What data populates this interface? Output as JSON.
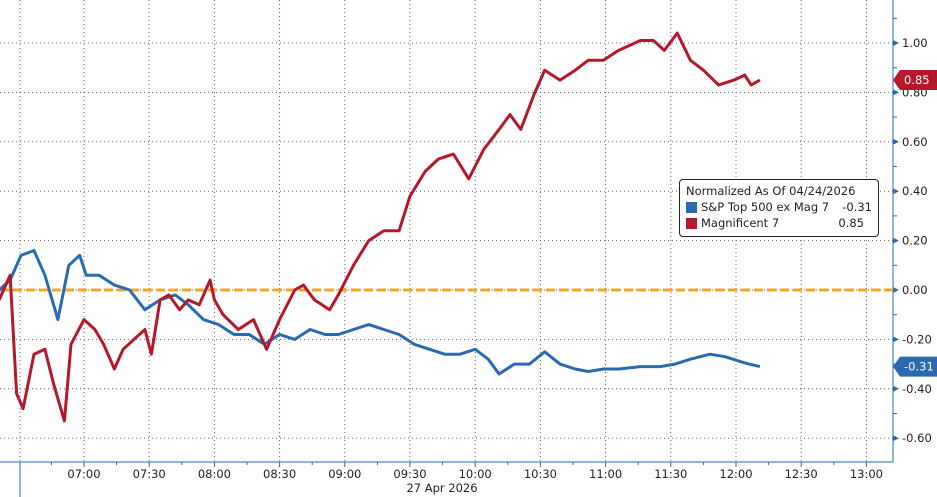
{
  "chart_data": {
    "type": "line",
    "title": "",
    "xlabel": "27 Apr 2026",
    "ylabel": "",
    "x_ticks": [
      "07:00",
      "07:30",
      "08:00",
      "08:30",
      "09:00",
      "09:30",
      "10:00",
      "10:30",
      "11:00",
      "11:30",
      "12:00",
      "12:30",
      "13:00"
    ],
    "y_ticks": [
      "1.00",
      "0.80",
      "0.60",
      "0.40",
      "0.20",
      "0.00",
      "-0.20",
      "-0.40",
      "-0.60"
    ],
    "ylim": [
      -0.68,
      1.17
    ],
    "xlim": [
      "06:21",
      "13:12"
    ],
    "y_axis_side": "right",
    "grid": true,
    "legend": {
      "title": "Normalized As Of 04/24/2026",
      "placement": "right",
      "entries": [
        {
          "name": "S&P Top 500 ex Mag 7",
          "value": "-0.31",
          "color": "#2a6bb0"
        },
        {
          "name": "Magnificent 7",
          "value": "0.85",
          "color": "#b5182b"
        }
      ]
    },
    "reference_line": {
      "y": 0,
      "color": "#f5a623",
      "style": "dashed"
    },
    "series": [
      {
        "name": "S&P Top 500 ex Mag 7",
        "color": "#2a6bb0",
        "last_label": "-0.31",
        "x": [
          "06:21",
          "06:26",
          "06:31",
          "06:37",
          "06:42",
          "06:48",
          "06:53",
          "06:58",
          "07:01",
          "07:07",
          "07:14",
          "07:21",
          "07:28",
          "07:35",
          "07:42",
          "07:48",
          "07:55",
          "08:02",
          "08:09",
          "08:16",
          "08:23",
          "08:30",
          "08:37",
          "08:44",
          "08:51",
          "08:57",
          "09:04",
          "09:11",
          "09:18",
          "09:25",
          "09:32",
          "09:39",
          "09:46",
          "09:53",
          "10:00",
          "10:06",
          "10:11",
          "10:18",
          "10:25",
          "10:32",
          "10:39",
          "10:46",
          "10:52",
          "10:59",
          "11:06",
          "11:16",
          "11:25",
          "11:32",
          "11:39",
          "11:48",
          "11:55",
          "12:02",
          "12:06",
          "12:11"
        ],
        "y": [
          0,
          0.04,
          0.14,
          0.16,
          0.06,
          -0.12,
          0.1,
          0.14,
          0.06,
          0.06,
          0.02,
          0,
          -0.08,
          -0.04,
          -0.02,
          -0.06,
          -0.12,
          -0.14,
          -0.18,
          -0.18,
          -0.22,
          -0.18,
          -0.2,
          -0.16,
          -0.18,
          -0.18,
          -0.16,
          -0.14,
          -0.16,
          -0.18,
          -0.22,
          -0.24,
          -0.26,
          -0.26,
          -0.24,
          -0.28,
          -0.34,
          -0.3,
          -0.3,
          -0.25,
          -0.3,
          -0.32,
          -0.33,
          -0.32,
          -0.32,
          -0.31,
          -0.31,
          -0.3,
          -0.28,
          -0.26,
          -0.27,
          -0.29,
          -0.3,
          -0.31
        ]
      },
      {
        "name": "Magnificent 7",
        "color": "#b5182b",
        "last_label": "0.85",
        "x": [
          "06:21",
          "06:26",
          "06:29",
          "06:32",
          "06:37",
          "06:42",
          "06:46",
          "06:51",
          "06:54",
          "07:00",
          "07:05",
          "07:09",
          "07:14",
          "07:18",
          "07:23",
          "07:28",
          "07:31",
          "07:35",
          "07:39",
          "07:44",
          "07:48",
          "07:53",
          "07:58",
          "08:00",
          "08:04",
          "08:11",
          "08:18",
          "08:24",
          "08:30",
          "08:37",
          "08:41",
          "08:46",
          "08:53",
          "08:57",
          "09:04",
          "09:11",
          "09:18",
          "09:25",
          "09:30",
          "09:37",
          "09:43",
          "09:50",
          "09:57",
          "10:04",
          "10:11",
          "10:16",
          "10:21",
          "10:27",
          "10:32",
          "10:39",
          "10:46",
          "10:52",
          "10:59",
          "11:06",
          "11:16",
          "11:22",
          "11:27",
          "11:33",
          "11:39",
          "11:45",
          "11:52",
          "11:59",
          "12:04",
          "12:07",
          "12:11"
        ],
        "y": [
          -0.04,
          0.06,
          -0.42,
          -0.48,
          -0.26,
          -0.24,
          -0.38,
          -0.53,
          -0.22,
          -0.12,
          -0.16,
          -0.22,
          -0.32,
          -0.24,
          -0.2,
          -0.16,
          -0.26,
          -0.04,
          -0.02,
          -0.08,
          -0.04,
          -0.06,
          0.04,
          -0.04,
          -0.1,
          -0.16,
          -0.12,
          -0.24,
          -0.12,
          0,
          0.02,
          -0.04,
          -0.08,
          -0.02,
          0.1,
          0.2,
          0.24,
          0.24,
          0.38,
          0.48,
          0.53,
          0.55,
          0.45,
          0.57,
          0.65,
          0.71,
          0.65,
          0.79,
          0.89,
          0.85,
          0.89,
          0.93,
          0.93,
          0.97,
          1.01,
          1.01,
          0.97,
          1.04,
          0.93,
          0.89,
          0.83,
          0.85,
          0.87,
          0.83,
          0.85
        ]
      }
    ]
  }
}
